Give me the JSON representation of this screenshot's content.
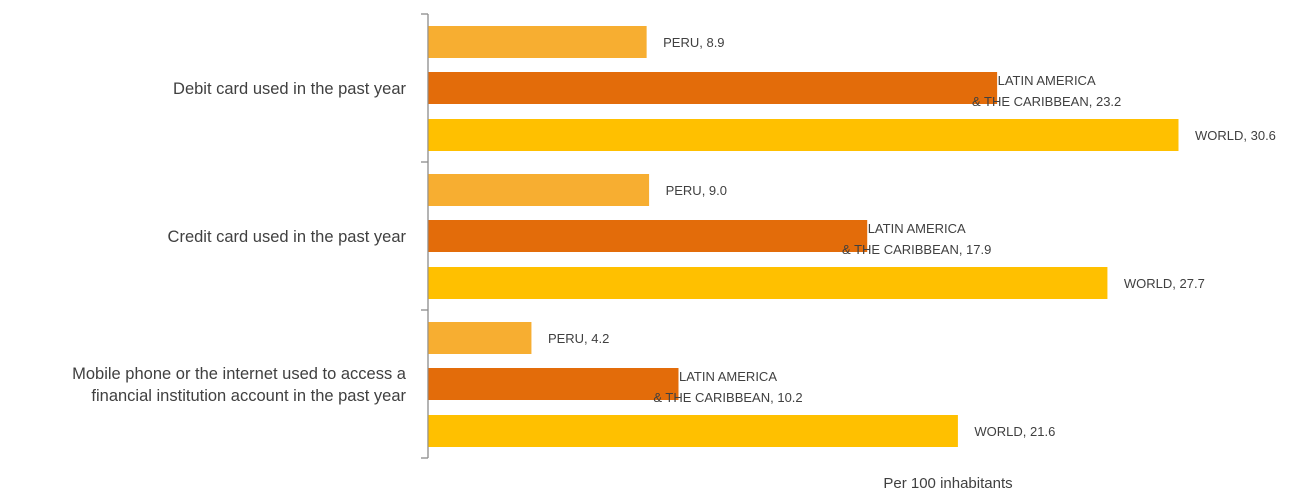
{
  "chart_data": {
    "type": "bar",
    "orientation": "horizontal",
    "categories": [
      [
        "Debit card used in the past year"
      ],
      [
        "Credit card used in the past year"
      ],
      [
        "Mobile phone or the internet used to access a",
        "financial institution account in the past year"
      ]
    ],
    "series": [
      {
        "label_lines": [
          "PERU"
        ],
        "color": "#F7AE31",
        "values": [
          8.9,
          9.0,
          4.2
        ]
      },
      {
        "label_lines": [
          "LATIN AMERICA",
          "& THE CARIBBEAN"
        ],
        "color": "#E36C0A",
        "values": [
          23.2,
          17.9,
          10.2
        ]
      },
      {
        "label_lines": [
          "WORLD"
        ],
        "color": "#FFC000",
        "values": [
          30.6,
          27.7,
          21.6
        ]
      }
    ],
    "value_format": "one_decimal",
    "xlabel": "Per 100 inhabitants",
    "ylabel": "",
    "xlim": [
      0,
      30.6
    ],
    "grid": false,
    "legend": "none"
  }
}
